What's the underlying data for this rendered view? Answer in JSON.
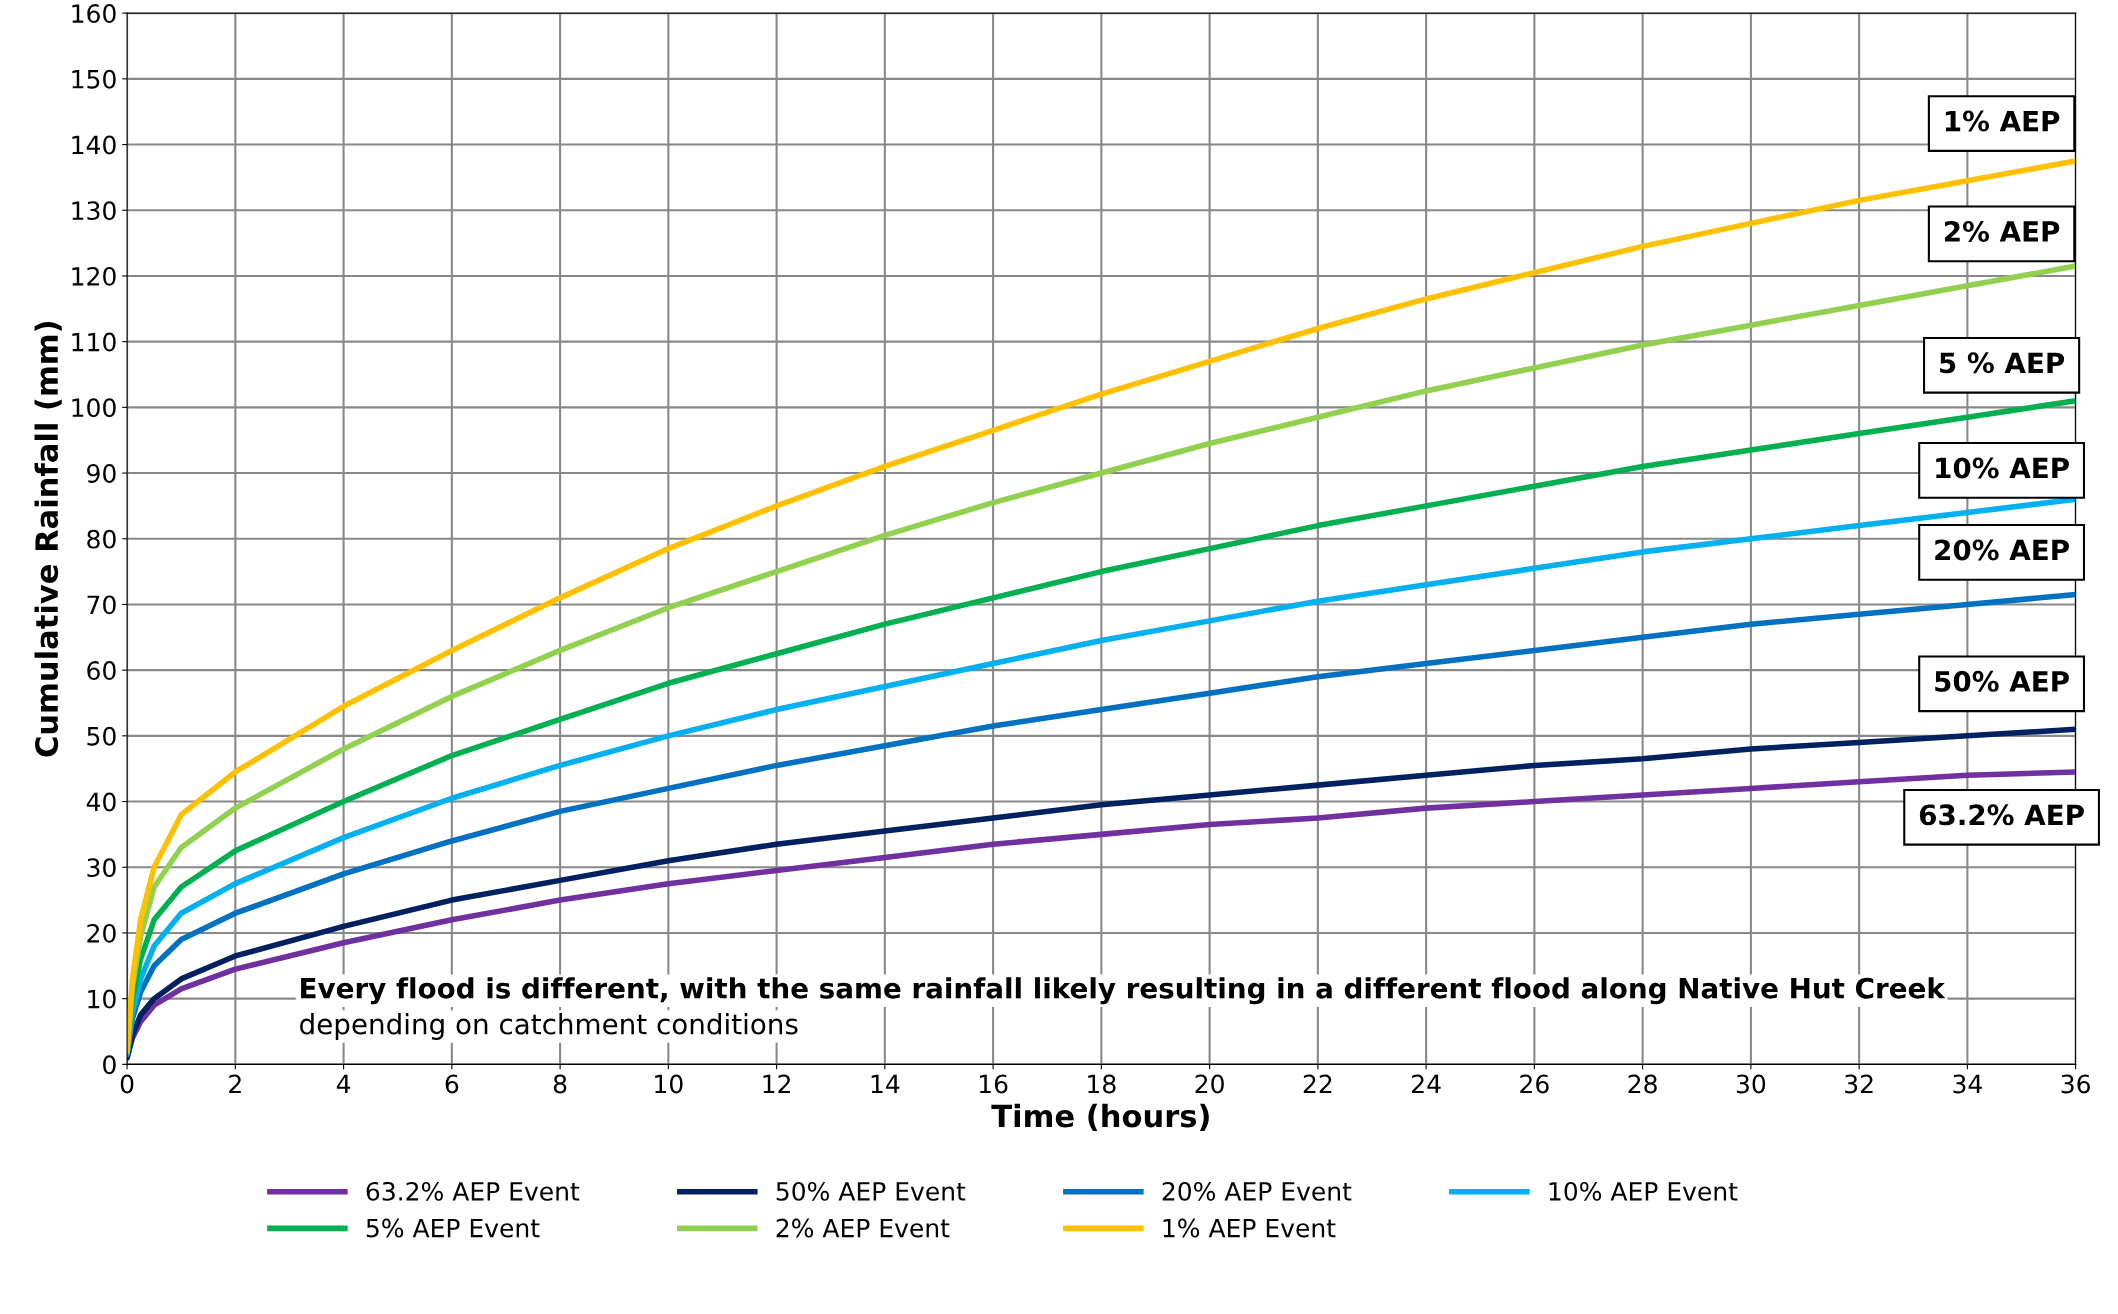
{
  "chart_data": {
    "type": "line",
    "xlabel": "Time (hours)",
    "ylabel": "Cumulative Rainfall (mm)",
    "x": [
      0,
      0.1,
      0.25,
      0.5,
      1,
      2,
      4,
      6,
      8,
      10,
      12,
      14,
      16,
      18,
      20,
      22,
      24,
      26,
      28,
      30,
      32,
      34,
      36
    ],
    "series": [
      {
        "name": "63.2% AEP Event",
        "color": "#7030a0",
        "values": [
          1,
          4,
          6.5,
          9,
          11.5,
          14.5,
          18.5,
          22,
          25,
          27.5,
          29.5,
          31.5,
          33.5,
          35,
          36.5,
          37.5,
          39,
          40,
          41,
          42,
          43,
          44,
          44.5
        ]
      },
      {
        "name": "50% AEP Event",
        "color": "#002060",
        "values": [
          1,
          4.5,
          7.5,
          10,
          13,
          16.5,
          21,
          25,
          28,
          31,
          33.5,
          35.5,
          37.5,
          39.5,
          41,
          42.5,
          44,
          45.5,
          46.5,
          48,
          49,
          50,
          51
        ]
      },
      {
        "name": "20% AEP Event",
        "color": "#0070c0",
        "values": [
          1.5,
          7,
          11,
          15,
          19,
          23,
          29,
          34,
          38.5,
          42,
          45.5,
          48.5,
          51.5,
          54,
          56.5,
          59,
          61,
          63,
          65,
          67,
          68.5,
          70,
          71.5
        ]
      },
      {
        "name": "10% AEP Event",
        "color": "#00b0f0",
        "values": [
          1.5,
          8,
          13,
          18,
          23,
          27.5,
          34.5,
          40.5,
          45.5,
          50,
          54,
          57.5,
          61,
          64.5,
          67.5,
          70.5,
          73,
          75.5,
          78,
          80,
          82,
          84,
          86
        ]
      },
      {
        "name": "5% AEP Event",
        "color": "#00b050",
        "values": [
          2,
          10,
          16,
          22,
          27,
          32.5,
          40,
          47,
          52.5,
          58,
          62.5,
          67,
          71,
          75,
          78.5,
          82,
          85,
          88,
          91,
          93.5,
          96,
          98.5,
          101
        ]
      },
      {
        "name": "2% AEP Event",
        "color": "#92d050",
        "values": [
          2,
          12,
          19.5,
          27,
          33,
          39,
          48,
          56,
          63,
          69.5,
          75,
          80.5,
          85.5,
          90,
          94.5,
          98.5,
          102.5,
          106,
          109.5,
          112.5,
          115.5,
          118.5,
          121.5
        ]
      },
      {
        "name": "1% AEP Event",
        "color": "#ffc000",
        "values": [
          2,
          13,
          22,
          30,
          38,
          44.5,
          54.5,
          63,
          71,
          78.5,
          85,
          91,
          96.5,
          102,
          107,
          112,
          116.5,
          120.5,
          124.5,
          128,
          131.5,
          134.5,
          137.5
        ]
      }
    ],
    "xlim": [
      0,
      36
    ],
    "xticks": [
      0,
      2,
      4,
      6,
      8,
      10,
      12,
      14,
      16,
      18,
      20,
      22,
      24,
      26,
      28,
      30,
      32,
      34,
      36
    ],
    "ylim": [
      0,
      160
    ],
    "yticks": [
      0,
      10,
      20,
      30,
      40,
      50,
      60,
      70,
      80,
      90,
      100,
      110,
      120,
      130,
      140,
      150,
      160
    ],
    "grid": true,
    "legend": "bottom",
    "marker": "none",
    "line_style": "solid",
    "annotations": [
      "1% AEP",
      "2% AEP",
      "5 % AEP",
      "10% AEP",
      "20% AEP",
      "50% AEP",
      "63.2% AEP",
      "Every flood is different, with the same rainfall likely resulting in a different flood along Native Hut Creek",
      "depending on catchment conditions"
    ]
  }
}
